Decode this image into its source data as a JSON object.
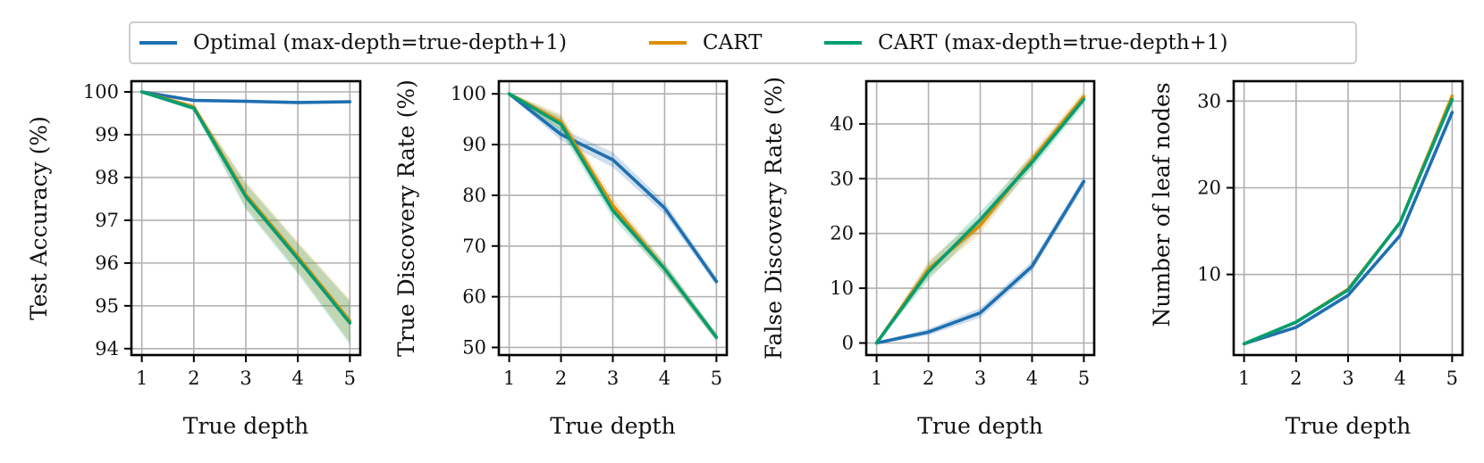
{
  "legend": {
    "items": [
      {
        "label": "Optimal (max-depth=true-depth+1)",
        "color": "#1f6fb0"
      },
      {
        "label": "CART",
        "color": "#de8f05"
      },
      {
        "label": "CART (max-depth=true-depth+1)",
        "color": "#029e73"
      }
    ]
  },
  "chart_data": [
    {
      "type": "line",
      "xlabel": "True depth",
      "ylabel": "Test Accuracy (%)",
      "x": [
        1,
        2,
        3,
        4,
        5
      ],
      "xticks": [
        1,
        2,
        3,
        4,
        5
      ],
      "yticks": [
        94,
        95,
        96,
        97,
        98,
        99,
        100
      ],
      "xlim": [
        0.8,
        5.2
      ],
      "ylim": [
        93.85,
        100.25
      ],
      "grid": true,
      "series": [
        {
          "name": "CART",
          "color": "#de8f05",
          "values": [
            100.0,
            99.65,
            97.6,
            96.15,
            94.65
          ],
          "band": [
            0.02,
            0.06,
            0.3,
            0.35,
            0.5
          ]
        },
        {
          "name": "CART (max-depth=true-depth+1)",
          "color": "#029e73",
          "values": [
            100.0,
            99.62,
            97.55,
            96.1,
            94.6
          ],
          "band": [
            0.02,
            0.06,
            0.3,
            0.35,
            0.5
          ]
        },
        {
          "name": "Optimal (max-depth=true-depth+1)",
          "color": "#1f6fb0",
          "values": [
            100.0,
            99.8,
            99.78,
            99.75,
            99.77
          ],
          "band": [
            0.01,
            0.02,
            0.02,
            0.02,
            0.02
          ]
        }
      ]
    },
    {
      "type": "line",
      "xlabel": "True depth",
      "ylabel": "True Discovery Rate (%)",
      "x": [
        1,
        2,
        3,
        4,
        5
      ],
      "xticks": [
        1,
        2,
        3,
        4,
        5
      ],
      "yticks": [
        50,
        60,
        70,
        80,
        90,
        100
      ],
      "xlim": [
        0.8,
        5.2
      ],
      "ylim": [
        48.5,
        102.5
      ],
      "grid": true,
      "series": [
        {
          "name": "CART",
          "color": "#de8f05",
          "values": [
            100,
            94.5,
            78,
            65.5,
            52
          ],
          "band": [
            0.3,
            1.5,
            1.5,
            1.2,
            0.8
          ]
        },
        {
          "name": "CART (max-depth=true-depth+1)",
          "color": "#029e73",
          "values": [
            100,
            94.0,
            77.0,
            65.5,
            52
          ],
          "band": [
            0.3,
            1.5,
            1.5,
            1.2,
            0.8
          ]
        },
        {
          "name": "Optimal (max-depth=true-depth+1)",
          "color": "#1f6fb0",
          "values": [
            100,
            92.0,
            87.0,
            77.5,
            63
          ],
          "band": [
            0.3,
            1.2,
            1.5,
            1.2,
            0.8
          ]
        }
      ]
    },
    {
      "type": "line",
      "xlabel": "True depth",
      "ylabel": "False Discovery Rate (%)",
      "x": [
        1,
        2,
        3,
        4,
        5
      ],
      "xticks": [
        1,
        2,
        3,
        4,
        5
      ],
      "yticks": [
        0,
        10,
        20,
        30,
        40
      ],
      "xlim": [
        0.8,
        5.2
      ],
      "ylim": [
        -2.2,
        47.8
      ],
      "grid": true,
      "series": [
        {
          "name": "CART",
          "color": "#de8f05",
          "values": [
            0,
            13.5,
            21.5,
            33.5,
            45
          ],
          "band": [
            0.2,
            1.5,
            1.5,
            1.2,
            1.0
          ]
        },
        {
          "name": "CART (max-depth=true-depth+1)",
          "color": "#029e73",
          "values": [
            0,
            13.0,
            22.5,
            33.0,
            44.5
          ],
          "band": [
            0.2,
            1.5,
            1.5,
            1.2,
            1.0
          ]
        },
        {
          "name": "Optimal (max-depth=true-depth+1)",
          "color": "#1f6fb0",
          "values": [
            0,
            2.0,
            5.5,
            14.0,
            29.5
          ],
          "band": [
            0.2,
            0.6,
            0.9,
            0.9,
            0.9
          ]
        }
      ]
    },
    {
      "type": "line",
      "xlabel": "True depth",
      "ylabel": "Number of leaf nodes",
      "x": [
        1,
        2,
        3,
        4,
        5
      ],
      "xticks": [
        1,
        2,
        3,
        4,
        5
      ],
      "yticks": [
        10,
        20,
        30
      ],
      "xlim": [
        0.8,
        5.2
      ],
      "ylim": [
        0.7,
        32.3
      ],
      "grid": true,
      "series": [
        {
          "name": "CART",
          "color": "#de8f05",
          "values": [
            2,
            4.5,
            8.3,
            16.0,
            30.6
          ],
          "band": [
            0.05,
            0.1,
            0.15,
            0.2,
            0.3
          ]
        },
        {
          "name": "CART (max-depth=true-depth+1)",
          "color": "#029e73",
          "values": [
            2,
            4.5,
            8.2,
            16.0,
            30.2
          ],
          "band": [
            0.05,
            0.1,
            0.15,
            0.2,
            0.3
          ]
        },
        {
          "name": "Optimal (max-depth=true-depth+1)",
          "color": "#1f6fb0",
          "values": [
            2,
            3.9,
            7.6,
            14.5,
            28.7
          ],
          "band": [
            0.05,
            0.1,
            0.15,
            0.2,
            0.3
          ]
        }
      ]
    }
  ]
}
